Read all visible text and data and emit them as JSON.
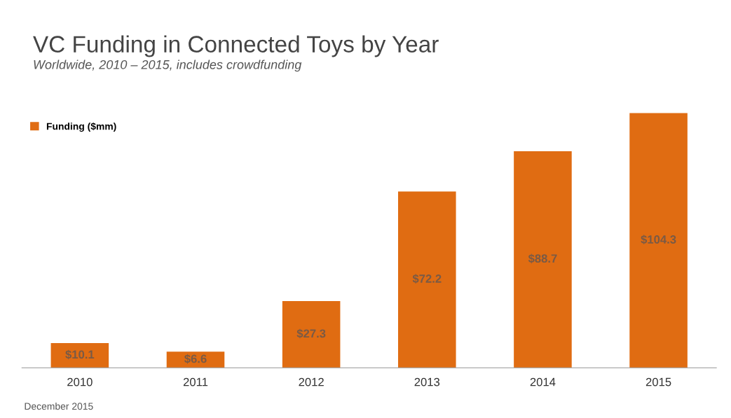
{
  "chart_data": {
    "type": "bar",
    "title": "VC Funding in Connected Toys by Year",
    "subtitle": "Worldwide, 2010 – 2015, includes crowdfunding",
    "categories": [
      "2010",
      "2011",
      "2012",
      "2013",
      "2014",
      "2015"
    ],
    "series": [
      {
        "name": "Funding ($mm)",
        "color": "#e06c12",
        "values": [
          10.1,
          6.6,
          27.3,
          72.2,
          88.7,
          104.3
        ],
        "value_labels": [
          "$10.1",
          "$6.6",
          "$27.3",
          "$72.2",
          "$88.7",
          "$104.3"
        ]
      }
    ],
    "legend": "top left",
    "grid": false,
    "tick_labels": "x",
    "annotations": [
      "December 2015"
    ]
  }
}
